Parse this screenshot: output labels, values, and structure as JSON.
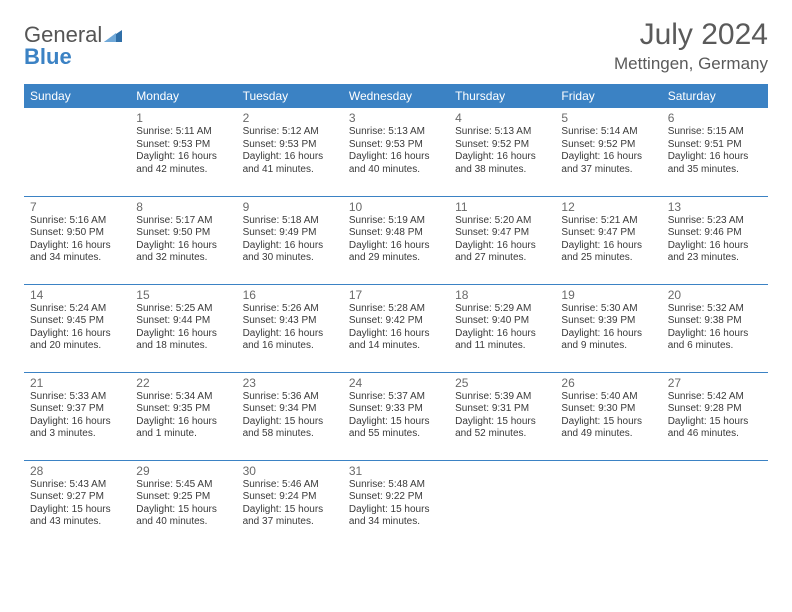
{
  "brand": {
    "part1": "General",
    "part2": "Blue"
  },
  "title": "July 2024",
  "location": "Mettingen, Germany",
  "colors": {
    "header_bg": "#3b82c4",
    "header_text": "#ffffff",
    "border": "#3b82c4",
    "text": "#3a3a3a",
    "title_color": "#5a5a5a"
  },
  "weekdays": [
    "Sunday",
    "Monday",
    "Tuesday",
    "Wednesday",
    "Thursday",
    "Friday",
    "Saturday"
  ],
  "days": {
    "1": {
      "sr": "5:11 AM",
      "ss": "9:53 PM",
      "dl": "16 hours and 42 minutes."
    },
    "2": {
      "sr": "5:12 AM",
      "ss": "9:53 PM",
      "dl": "16 hours and 41 minutes."
    },
    "3": {
      "sr": "5:13 AM",
      "ss": "9:53 PM",
      "dl": "16 hours and 40 minutes."
    },
    "4": {
      "sr": "5:13 AM",
      "ss": "9:52 PM",
      "dl": "16 hours and 38 minutes."
    },
    "5": {
      "sr": "5:14 AM",
      "ss": "9:52 PM",
      "dl": "16 hours and 37 minutes."
    },
    "6": {
      "sr": "5:15 AM",
      "ss": "9:51 PM",
      "dl": "16 hours and 35 minutes."
    },
    "7": {
      "sr": "5:16 AM",
      "ss": "9:50 PM",
      "dl": "16 hours and 34 minutes."
    },
    "8": {
      "sr": "5:17 AM",
      "ss": "9:50 PM",
      "dl": "16 hours and 32 minutes."
    },
    "9": {
      "sr": "5:18 AM",
      "ss": "9:49 PM",
      "dl": "16 hours and 30 minutes."
    },
    "10": {
      "sr": "5:19 AM",
      "ss": "9:48 PM",
      "dl": "16 hours and 29 minutes."
    },
    "11": {
      "sr": "5:20 AM",
      "ss": "9:47 PM",
      "dl": "16 hours and 27 minutes."
    },
    "12": {
      "sr": "5:21 AM",
      "ss": "9:47 PM",
      "dl": "16 hours and 25 minutes."
    },
    "13": {
      "sr": "5:23 AM",
      "ss": "9:46 PM",
      "dl": "16 hours and 23 minutes."
    },
    "14": {
      "sr": "5:24 AM",
      "ss": "9:45 PM",
      "dl": "16 hours and 20 minutes."
    },
    "15": {
      "sr": "5:25 AM",
      "ss": "9:44 PM",
      "dl": "16 hours and 18 minutes."
    },
    "16": {
      "sr": "5:26 AM",
      "ss": "9:43 PM",
      "dl": "16 hours and 16 minutes."
    },
    "17": {
      "sr": "5:28 AM",
      "ss": "9:42 PM",
      "dl": "16 hours and 14 minutes."
    },
    "18": {
      "sr": "5:29 AM",
      "ss": "9:40 PM",
      "dl": "16 hours and 11 minutes."
    },
    "19": {
      "sr": "5:30 AM",
      "ss": "9:39 PM",
      "dl": "16 hours and 9 minutes."
    },
    "20": {
      "sr": "5:32 AM",
      "ss": "9:38 PM",
      "dl": "16 hours and 6 minutes."
    },
    "21": {
      "sr": "5:33 AM",
      "ss": "9:37 PM",
      "dl": "16 hours and 3 minutes."
    },
    "22": {
      "sr": "5:34 AM",
      "ss": "9:35 PM",
      "dl": "16 hours and 1 minute."
    },
    "23": {
      "sr": "5:36 AM",
      "ss": "9:34 PM",
      "dl": "15 hours and 58 minutes."
    },
    "24": {
      "sr": "5:37 AM",
      "ss": "9:33 PM",
      "dl": "15 hours and 55 minutes."
    },
    "25": {
      "sr": "5:39 AM",
      "ss": "9:31 PM",
      "dl": "15 hours and 52 minutes."
    },
    "26": {
      "sr": "5:40 AM",
      "ss": "9:30 PM",
      "dl": "15 hours and 49 minutes."
    },
    "27": {
      "sr": "5:42 AM",
      "ss": "9:28 PM",
      "dl": "15 hours and 46 minutes."
    },
    "28": {
      "sr": "5:43 AM",
      "ss": "9:27 PM",
      "dl": "15 hours and 43 minutes."
    },
    "29": {
      "sr": "5:45 AM",
      "ss": "9:25 PM",
      "dl": "15 hours and 40 minutes."
    },
    "30": {
      "sr": "5:46 AM",
      "ss": "9:24 PM",
      "dl": "15 hours and 37 minutes."
    },
    "31": {
      "sr": "5:48 AM",
      "ss": "9:22 PM",
      "dl": "15 hours and 34 minutes."
    }
  },
  "labels": {
    "sunrise": "Sunrise: ",
    "sunset": "Sunset: ",
    "daylight": "Daylight: "
  },
  "grid": [
    [
      null,
      1,
      2,
      3,
      4,
      5,
      6
    ],
    [
      7,
      8,
      9,
      10,
      11,
      12,
      13
    ],
    [
      14,
      15,
      16,
      17,
      18,
      19,
      20
    ],
    [
      21,
      22,
      23,
      24,
      25,
      26,
      27
    ],
    [
      28,
      29,
      30,
      31,
      null,
      null,
      null
    ]
  ]
}
